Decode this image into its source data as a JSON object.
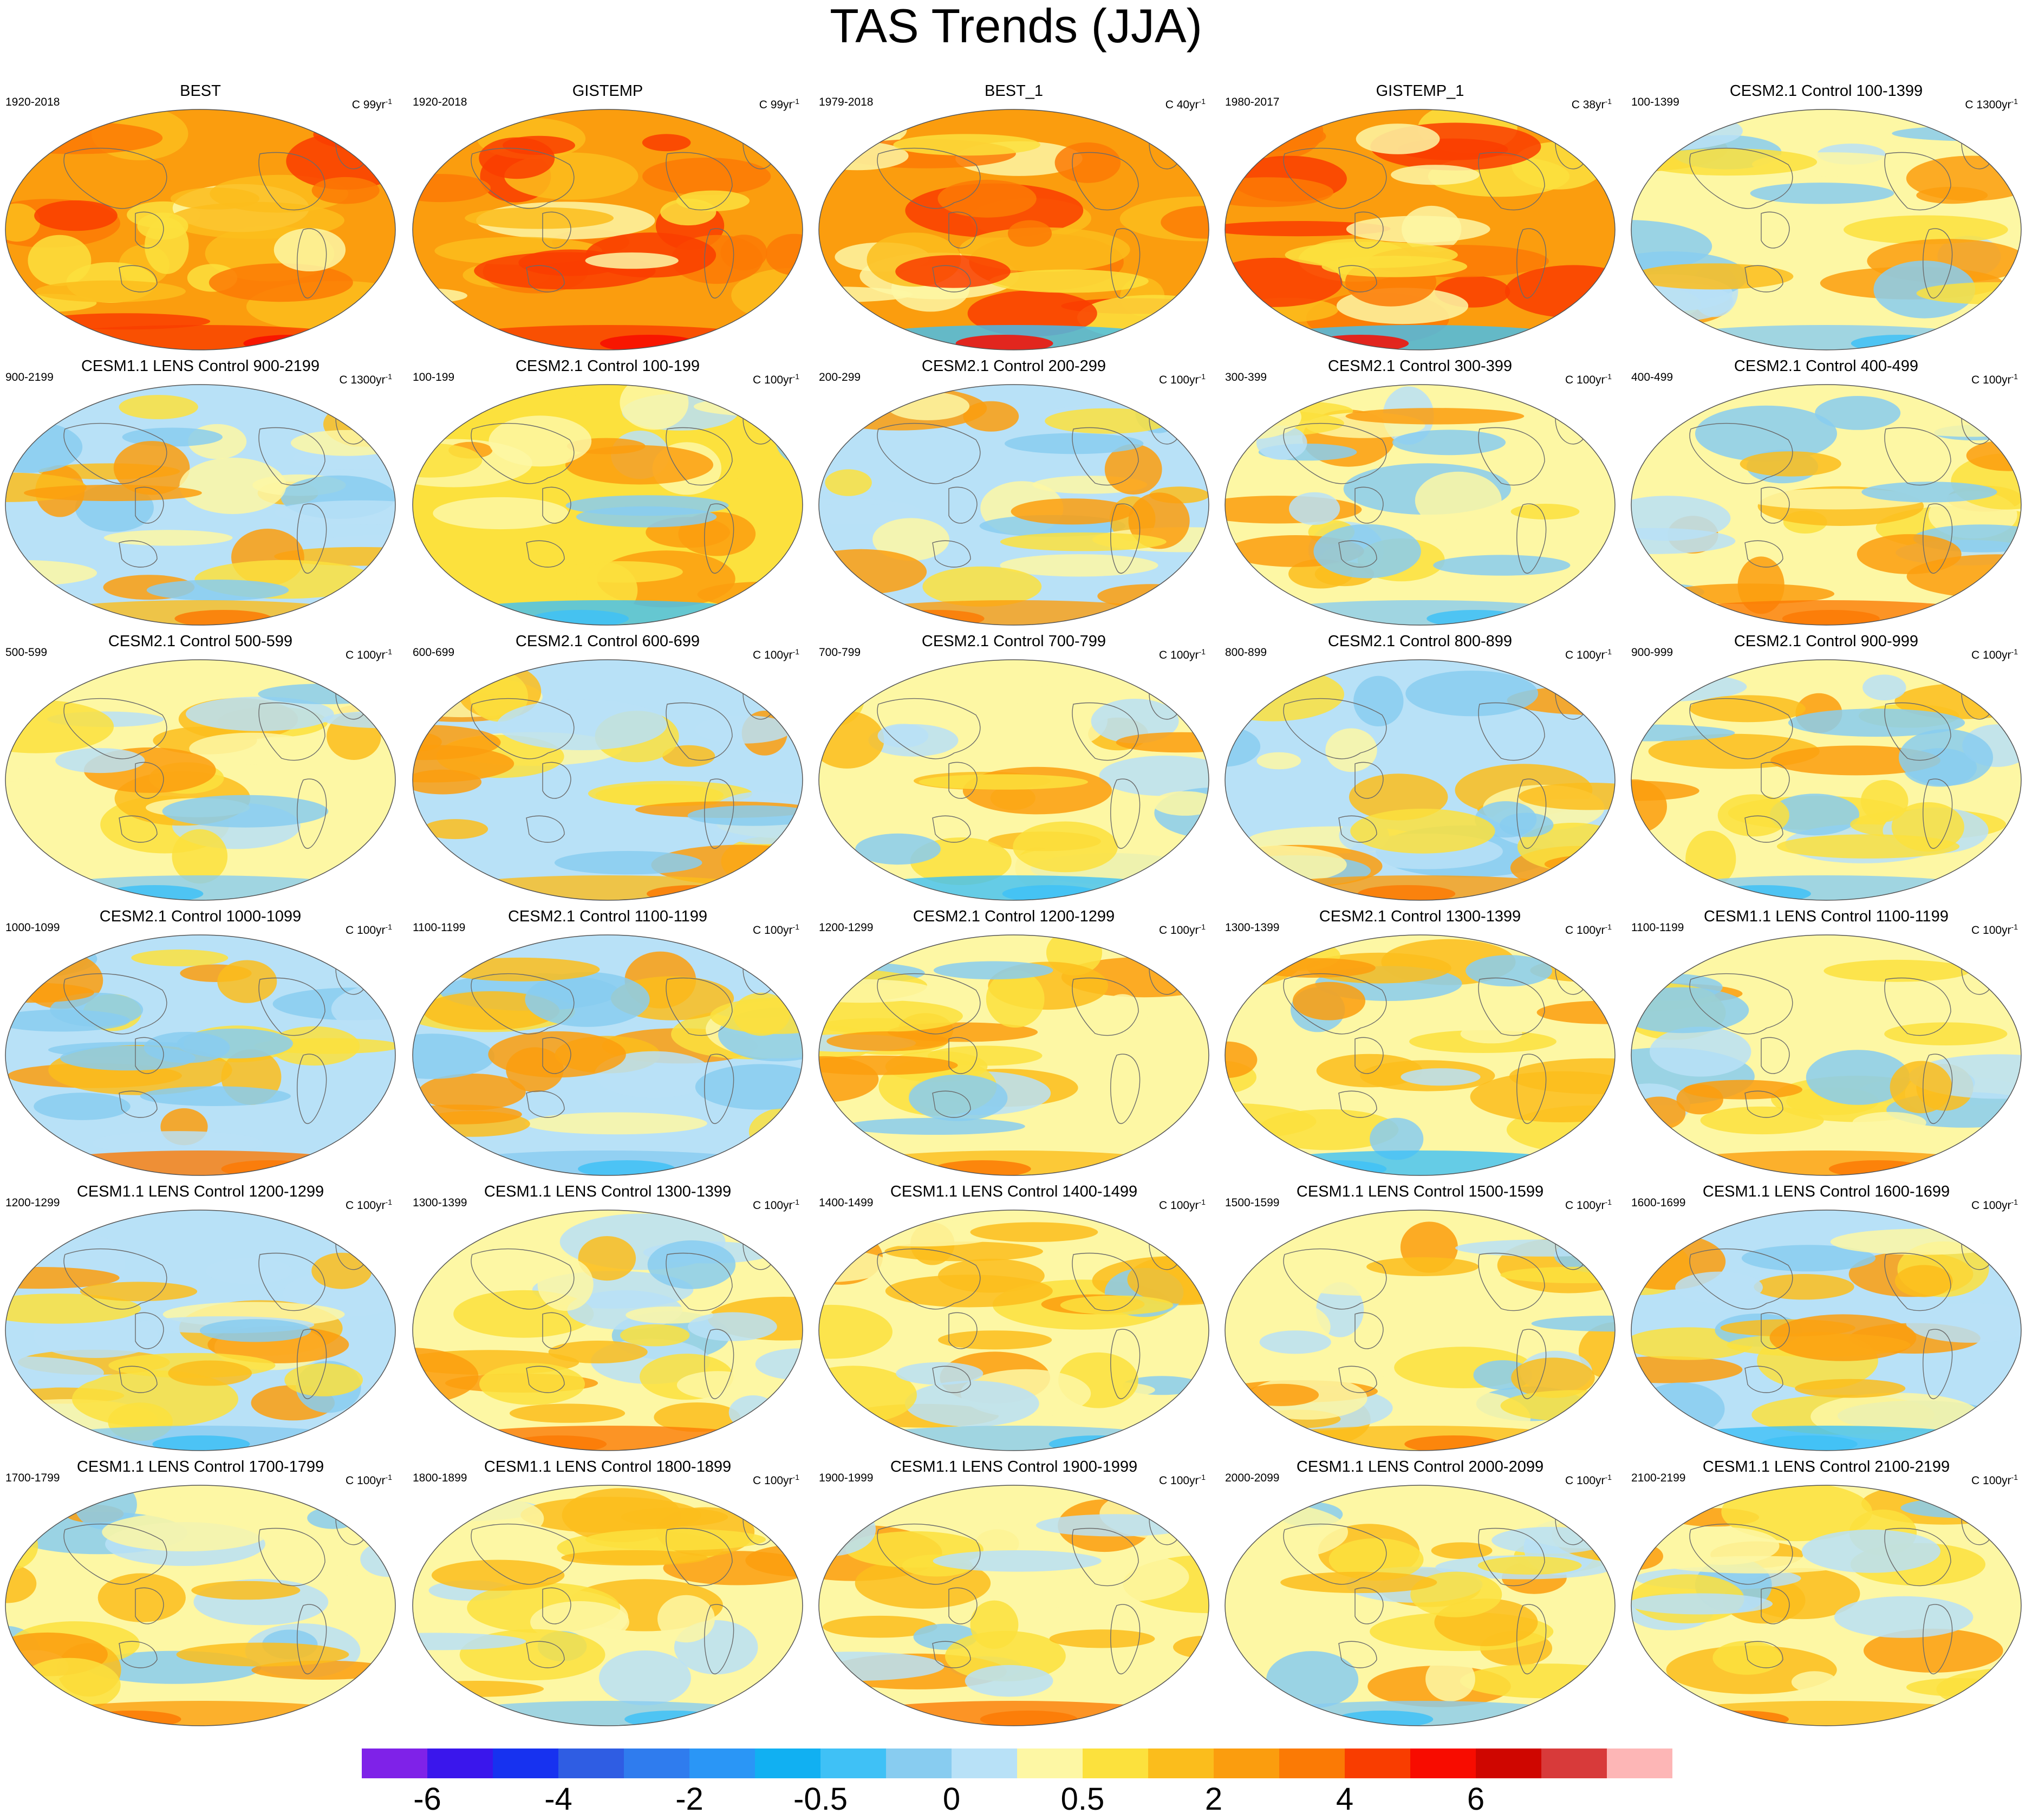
{
  "title": "TAS Trends (JJA)",
  "color_levels": [
    "#7f22e8",
    "#3a16ec",
    "#1732f0",
    "#2f5de3",
    "#2f7cee",
    "#2a96f6",
    "#11b0f2",
    "#3fc1f6",
    "#88ccf0",
    "#b8e1f7",
    "#fdf7a4",
    "#fce13d",
    "#fbbd1c",
    "#fb9d0e",
    "#fb7a05",
    "#f93d00",
    "#f80c00",
    "#cf0600",
    "#d83a3a",
    "#fdb6b6"
  ],
  "colorbar_labels": [
    "-6",
    "-4",
    "-2",
    "-0.5",
    "0",
    "0.5",
    "2",
    "4",
    "6"
  ],
  "chart_data": [
    {
      "type": "heatmap",
      "title": "BEST",
      "period": "1920-2018",
      "units": "C 99yr",
      "pattern": 0,
      "dominant_color_index": 13
    },
    {
      "type": "heatmap",
      "title": "GISTEMP",
      "period": "1920-2018",
      "units": "C 99yr",
      "pattern": 1,
      "dominant_color_index": 13
    },
    {
      "type": "heatmap",
      "title": "BEST_1",
      "period": "1979-2018",
      "units": "C 40yr",
      "pattern": 2,
      "dominant_color_index": 13
    },
    {
      "type": "heatmap",
      "title": "GISTEMP_1",
      "period": "1980-2017",
      "units": "C 38yr",
      "pattern": 3,
      "dominant_color_index": 13
    },
    {
      "type": "heatmap",
      "title": "CESM2.1 Control 100-1399",
      "period": "100-1399",
      "units": "C 1300yr",
      "pattern": 4,
      "dominant_color_index": 10
    },
    {
      "type": "heatmap",
      "title": "CESM1.1 LENS Control 900-2199",
      "period": "900-2199",
      "units": "C 1300yr",
      "pattern": 5,
      "dominant_color_index": 9
    },
    {
      "type": "heatmap",
      "title": "CESM2.1 Control 100-199",
      "period": "100-199",
      "units": "C 100yr",
      "pattern": 6,
      "dominant_color_index": 11
    },
    {
      "type": "heatmap",
      "title": "CESM2.1 Control 200-299",
      "period": "200-299",
      "units": "C 100yr",
      "pattern": 7,
      "dominant_color_index": 9
    },
    {
      "type": "heatmap",
      "title": "CESM2.1 Control 300-399",
      "period": "300-399",
      "units": "C 100yr",
      "pattern": 8,
      "dominant_color_index": 10
    },
    {
      "type": "heatmap",
      "title": "CESM2.1 Control 400-499",
      "period": "400-499",
      "units": "C 100yr",
      "pattern": 9,
      "dominant_color_index": 10
    },
    {
      "type": "heatmap",
      "title": "CESM2.1 Control 500-599",
      "period": "500-599",
      "units": "C 100yr",
      "pattern": 10,
      "dominant_color_index": 10
    },
    {
      "type": "heatmap",
      "title": "CESM2.1 Control 600-699",
      "period": "600-699",
      "units": "C 100yr",
      "pattern": 11,
      "dominant_color_index": 9
    },
    {
      "type": "heatmap",
      "title": "CESM2.1 Control 700-799",
      "period": "700-799",
      "units": "C 100yr",
      "pattern": 12,
      "dominant_color_index": 10
    },
    {
      "type": "heatmap",
      "title": "CESM2.1 Control 800-899",
      "period": "800-899",
      "units": "C 100yr",
      "pattern": 13,
      "dominant_color_index": 9
    },
    {
      "type": "heatmap",
      "title": "CESM2.1 Control 900-999",
      "period": "900-999",
      "units": "C 100yr",
      "pattern": 14,
      "dominant_color_index": 10
    },
    {
      "type": "heatmap",
      "title": "CESM2.1 Control 1000-1099",
      "period": "1000-1099",
      "units": "C 100yr",
      "pattern": 15,
      "dominant_color_index": 9
    },
    {
      "type": "heatmap",
      "title": "CESM2.1 Control 1100-1199",
      "period": "1100-1199",
      "units": "C 100yr",
      "pattern": 16,
      "dominant_color_index": 9
    },
    {
      "type": "heatmap",
      "title": "CESM2.1 Control 1200-1299",
      "period": "1200-1299",
      "units": "C 100yr",
      "pattern": 17,
      "dominant_color_index": 10
    },
    {
      "type": "heatmap",
      "title": "CESM2.1 Control 1300-1399",
      "period": "1300-1399",
      "units": "C 100yr",
      "pattern": 18,
      "dominant_color_index": 10
    },
    {
      "type": "heatmap",
      "title": "CESM1.1 LENS Control 1100-1199",
      "period": "1100-1199",
      "units": "C 100yr",
      "pattern": 19,
      "dominant_color_index": 10
    },
    {
      "type": "heatmap",
      "title": "CESM1.1 LENS Control 1200-1299",
      "period": "1200-1299",
      "units": "C 100yr",
      "pattern": 20,
      "dominant_color_index": 9
    },
    {
      "type": "heatmap",
      "title": "CESM1.1 LENS Control 1300-1399",
      "period": "1300-1399",
      "units": "C 100yr",
      "pattern": 21,
      "dominant_color_index": 10
    },
    {
      "type": "heatmap",
      "title": "CESM1.1 LENS Control 1400-1499",
      "period": "1400-1499",
      "units": "C 100yr",
      "pattern": 22,
      "dominant_color_index": 10
    },
    {
      "type": "heatmap",
      "title": "CESM1.1 LENS Control 1500-1599",
      "period": "1500-1599",
      "units": "C 100yr",
      "pattern": 23,
      "dominant_color_index": 10
    },
    {
      "type": "heatmap",
      "title": "CESM1.1 LENS Control 1600-1699",
      "period": "1600-1699",
      "units": "C 100yr",
      "pattern": 24,
      "dominant_color_index": 9
    },
    {
      "type": "heatmap",
      "title": "CESM1.1 LENS Control 1700-1799",
      "period": "1700-1799",
      "units": "C 100yr",
      "pattern": 25,
      "dominant_color_index": 10
    },
    {
      "type": "heatmap",
      "title": "CESM1.1 LENS Control 1800-1899",
      "period": "1800-1899",
      "units": "C 100yr",
      "pattern": 26,
      "dominant_color_index": 10
    },
    {
      "type": "heatmap",
      "title": "CESM1.1 LENS Control 1900-1999",
      "period": "1900-1999",
      "units": "C 100yr",
      "pattern": 27,
      "dominant_color_index": 10
    },
    {
      "type": "heatmap",
      "title": "CESM1.1 LENS Control 2000-2099",
      "period": "2000-2099",
      "units": "C 100yr",
      "pattern": 28,
      "dominant_color_index": 10
    },
    {
      "type": "heatmap",
      "title": "CESM1.1 LENS Control 2100-2199",
      "period": "2100-2199",
      "units": "C 100yr",
      "pattern": 29,
      "dominant_color_index": 10
    }
  ]
}
